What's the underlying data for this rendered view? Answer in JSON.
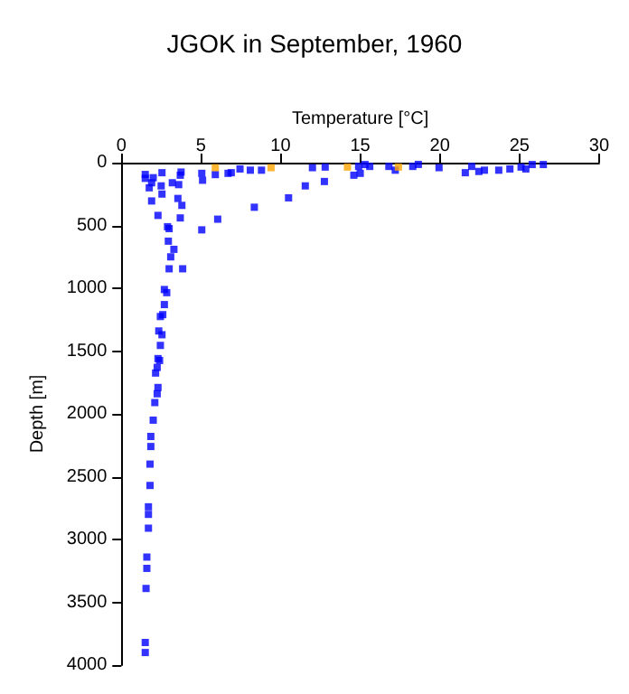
{
  "chart_data": {
    "type": "scatter",
    "title": "JGOK in September, 1960",
    "xlabel": "Temperature [°C]",
    "ylabel": "Depth [m]",
    "xlim": [
      0,
      30
    ],
    "xticks": [
      0,
      5,
      10,
      15,
      20,
      25,
      30
    ],
    "ylim": [
      4000,
      0
    ],
    "yticks": [
      0,
      500,
      1000,
      1500,
      2000,
      2500,
      3000,
      3500,
      4000
    ],
    "grid": false,
    "marker": "square",
    "series": [
      {
        "color": "#0000ff",
        "x": [
          1.5,
          1.5,
          2.0,
          2.55,
          1.9,
          1.75,
          2.5,
          3.2,
          3.7,
          3.75,
          3.6,
          2.55,
          1.9,
          3.55,
          3.8,
          2.3,
          3.7,
          2.9,
          3.0,
          2.95,
          3.3,
          3.1,
          3.0,
          3.85,
          2.7,
          2.85,
          2.7,
          2.45,
          2.6,
          2.35,
          2.55,
          2.45,
          2.4,
          2.15,
          2.25,
          5.05,
          5.1,
          5.9,
          5.05,
          6.05,
          6.7,
          6.9,
          7.45,
          8.1,
          8.8,
          8.35,
          10.5,
          11.55,
          12.75,
          12.0,
          12.8,
          14.6,
          15.0,
          14.9,
          15.3,
          15.6,
          16.8,
          17.2,
          18.3,
          18.65,
          19.95,
          21.6,
          22.0,
          22.45,
          22.8,
          23.7,
          24.4,
          25.1,
          25.4,
          25.8,
          26.5,
          2.3,
          2.25,
          2.3,
          2.1,
          2.0,
          1.85,
          1.85,
          1.8,
          1.8,
          1.7,
          1.7,
          1.7,
          1.6,
          1.6,
          1.55,
          1.5,
          1.5
        ],
        "values": [
          94,
          125,
          120,
          80,
          160,
          200,
          185,
          160,
          100,
          75,
          175,
          250,
          305,
          285,
          340,
          420,
          440,
          510,
          525,
          625,
          690,
          750,
          845,
          845,
          1010,
          1035,
          1130,
          1225,
          1210,
          1340,
          1370,
          1455,
          1575,
          1675,
          1840,
          85,
          140,
          95,
          535,
          450,
          85,
          80,
          50,
          60,
          60,
          355,
          280,
          185,
          150,
          40,
          35,
          100,
          85,
          30,
          15,
          30,
          30,
          60,
          30,
          14,
          40,
          80,
          30,
          70,
          60,
          60,
          50,
          35,
          50,
          15,
          15,
          1560,
          1630,
          1790,
          1910,
          2050,
          2180,
          2260,
          2400,
          2570,
          2740,
          2800,
          2910,
          3140,
          3230,
          3390,
          3820,
          3900
        ]
      },
      {
        "color": "#ffa500",
        "x": [
          5.9,
          9.4,
          14.2,
          17.4
        ],
        "values": [
          40,
          40,
          35,
          35
        ]
      }
    ]
  }
}
